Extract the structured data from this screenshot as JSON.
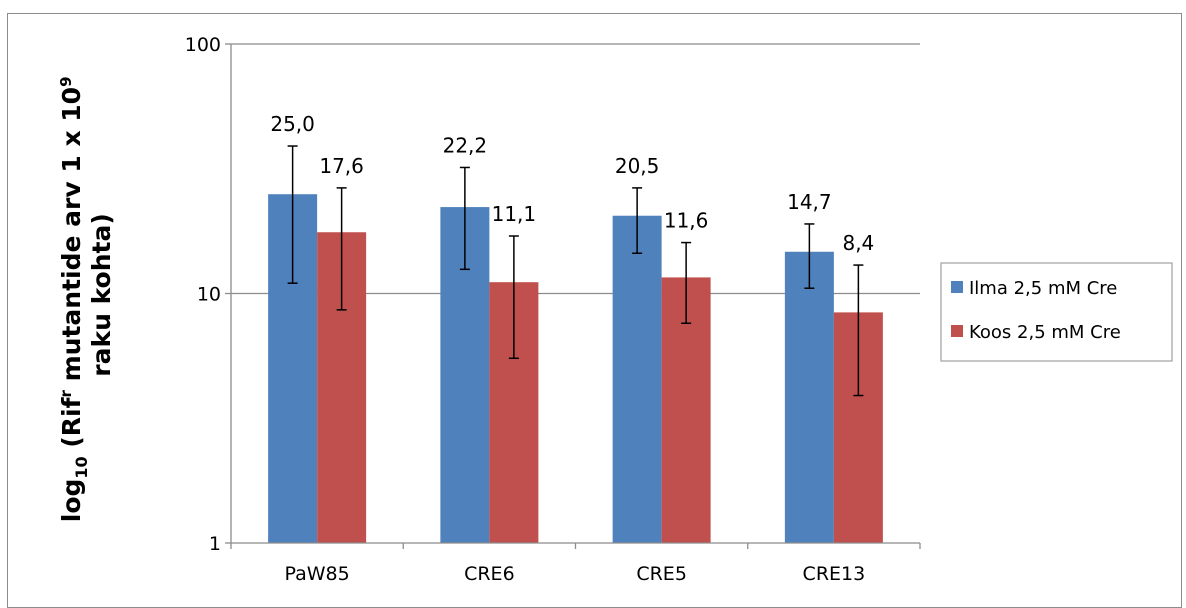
{
  "chart_data": {
    "type": "bar",
    "yscale": "log",
    "ylim": [
      1,
      100
    ],
    "yticks": [
      1,
      10,
      100
    ],
    "ytick_labels": [
      "1",
      "10",
      "100"
    ],
    "ylabel_line1_prefix": "log",
    "ylabel_line1_sub": "10",
    "ylabel_line1_mid": " (Rif",
    "ylabel_line1_sup1": "r",
    "ylabel_line1_rest": " mutantide arv 1 x 10",
    "ylabel_line1_sup2": "9",
    "ylabel_line2": "raku kohta)",
    "categories": [
      "PaW85",
      "CRE6",
      "CRE5",
      "CRE13"
    ],
    "series": [
      {
        "name": "Ilma 2,5 mM Cre",
        "color": "#4F81BD",
        "values": [
          25.0,
          22.2,
          20.5,
          14.7
        ],
        "labels": [
          "25,0",
          "22,2",
          "20,5",
          "14,7"
        ],
        "err_low": [
          11.0,
          12.5,
          14.5,
          10.5
        ],
        "err_high": [
          39.0,
          32.0,
          26.5,
          19.0
        ]
      },
      {
        "name": "Koos 2,5 mM Cre",
        "color": "#C0504D",
        "values": [
          17.6,
          11.1,
          11.6,
          8.4
        ],
        "labels": [
          "17,6",
          "11,1",
          "11,6",
          "8,4"
        ],
        "err_low": [
          8.6,
          5.5,
          7.6,
          3.9
        ],
        "err_high": [
          26.5,
          17.0,
          16.0,
          13.0
        ]
      }
    ],
    "grid": true,
    "legend_position": "right"
  }
}
